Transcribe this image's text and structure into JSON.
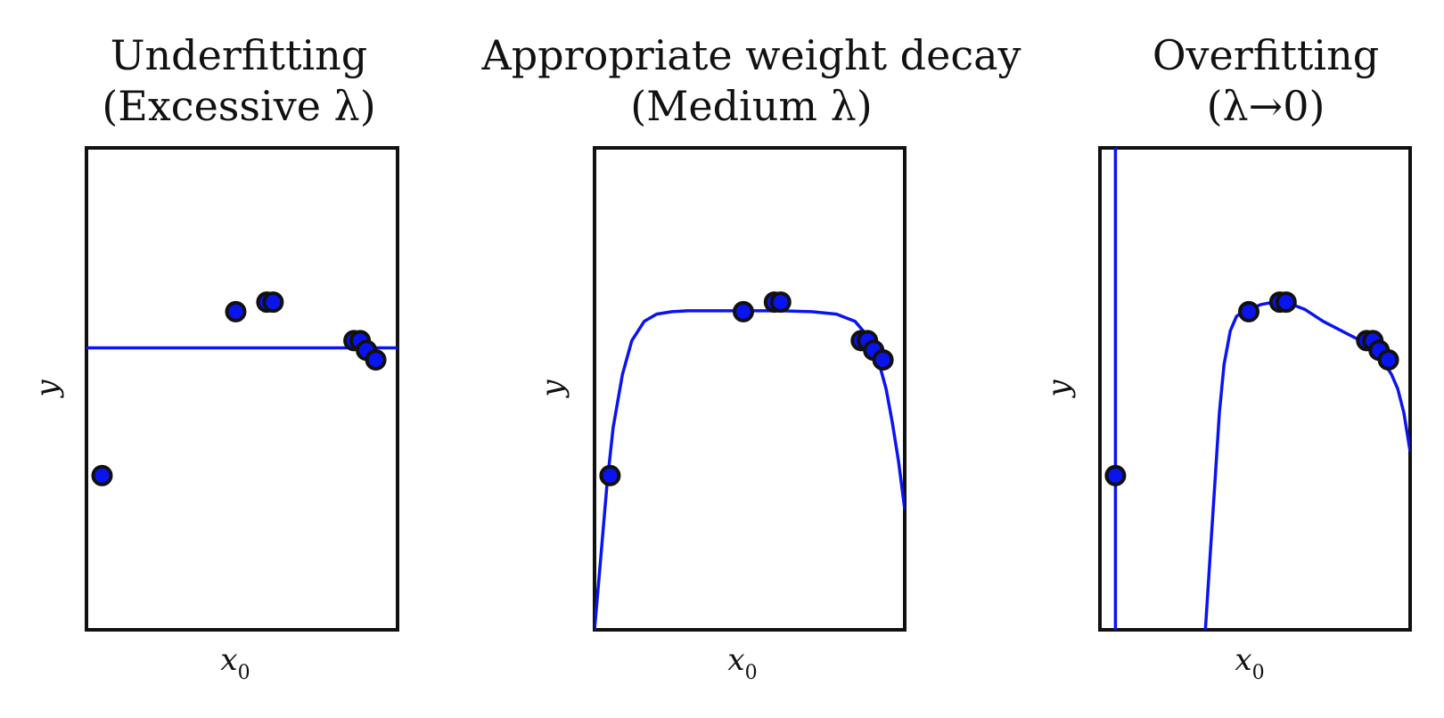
{
  "chart_data": [
    {
      "type": "scatter",
      "title_line1": "Underfitting",
      "title_line2": "(Excessive λ)",
      "xlabel": "x",
      "xlabel_sub": "0",
      "ylabel": "y",
      "xlim": [
        0,
        1
      ],
      "ylim": [
        0,
        1
      ],
      "points": {
        "x": [
          0.05,
          0.48,
          0.58,
          0.6,
          0.86,
          0.88,
          0.9,
          0.93
        ],
        "y": [
          0.32,
          0.66,
          0.68,
          0.68,
          0.6,
          0.6,
          0.58,
          0.56
        ]
      },
      "fit": {
        "x": [
          0,
          1
        ],
        "y": [
          0.585,
          0.585
        ]
      }
    },
    {
      "type": "scatter",
      "title_line1": "Appropriate weight decay",
      "title_line2": "(Medium λ)",
      "xlabel": "x",
      "xlabel_sub": "0",
      "ylabel": "y",
      "xlim": [
        0,
        1
      ],
      "ylim": [
        0,
        1
      ],
      "points": {
        "x": [
          0.05,
          0.48,
          0.58,
          0.6,
          0.86,
          0.88,
          0.9,
          0.93
        ],
        "y": [
          0.32,
          0.66,
          0.68,
          0.68,
          0.6,
          0.6,
          0.58,
          0.56
        ]
      },
      "fit": {
        "x": [
          0.0,
          0.02,
          0.04,
          0.06,
          0.09,
          0.12,
          0.16,
          0.2,
          0.25,
          0.3,
          0.4,
          0.5,
          0.6,
          0.7,
          0.78,
          0.84,
          0.88,
          0.91,
          0.94,
          0.96,
          0.98,
          1.0
        ],
        "y": [
          0.0,
          0.15,
          0.3,
          0.42,
          0.53,
          0.6,
          0.64,
          0.655,
          0.66,
          0.662,
          0.662,
          0.662,
          0.662,
          0.66,
          0.655,
          0.64,
          0.61,
          0.57,
          0.5,
          0.43,
          0.35,
          0.25
        ]
      }
    },
    {
      "type": "scatter",
      "title_line1": "Overfitting",
      "title_line2": "(λ→0)",
      "xlabel": "x",
      "xlabel_sub": "0",
      "ylabel": "y",
      "xlim": [
        0,
        1
      ],
      "ylim": [
        0,
        1
      ],
      "points": {
        "x": [
          0.05,
          0.48,
          0.58,
          0.6,
          0.86,
          0.88,
          0.9,
          0.93
        ],
        "y": [
          0.32,
          0.66,
          0.68,
          0.68,
          0.6,
          0.6,
          0.58,
          0.56
        ]
      },
      "fit_vertical_x": 0.05,
      "fit": {
        "x": [
          0.34,
          0.355,
          0.37,
          0.385,
          0.4,
          0.42,
          0.44,
          0.46,
          0.48,
          0.52,
          0.56,
          0.6,
          0.66,
          0.72,
          0.78,
          0.84,
          0.88,
          0.91,
          0.94,
          0.96,
          0.98,
          1.0
        ],
        "y": [
          0.0,
          0.15,
          0.3,
          0.45,
          0.55,
          0.62,
          0.65,
          0.66,
          0.665,
          0.675,
          0.68,
          0.68,
          0.665,
          0.64,
          0.62,
          0.6,
          0.58,
          0.56,
          0.53,
          0.5,
          0.45,
          0.37
        ]
      }
    }
  ]
}
